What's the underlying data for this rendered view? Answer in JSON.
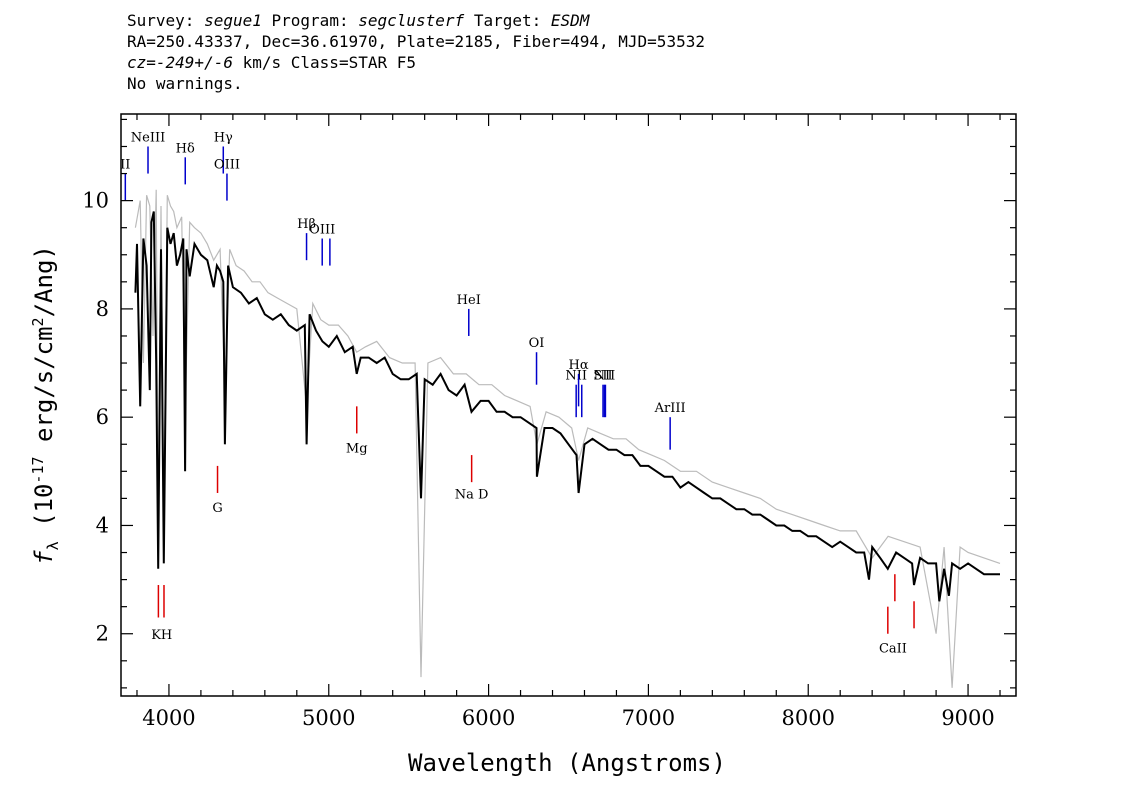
{
  "header": {
    "survey_label": "Survey:",
    "survey": "segue1",
    "program_label": "Program:",
    "program": "segclusterf",
    "target_label": "Target:",
    "target": "ESDM",
    "line2": "RA=250.43337, Dec=36.61970, Plate=2185, Fiber=494, MJD=53532",
    "cz": "cz=-249+/-6",
    "cz_unit": "km/s Class=STAR F5",
    "warnings": "No warnings."
  },
  "chart_data": {
    "type": "line",
    "xlabel": "Wavelength (Angstroms)",
    "ylabel": "f_λ (10^-17 erg/s/cm^2/Ang)",
    "xlim": [
      3700,
      9300
    ],
    "ylim": [
      0.85,
      11.6
    ],
    "x_ticks": [
      4000,
      5000,
      6000,
      7000,
      8000,
      9000
    ],
    "y_ticks": [
      2,
      4,
      6,
      8,
      10
    ],
    "grid": false,
    "series": [
      {
        "color": "#000000",
        "x": [
          3790,
          3800,
          3820,
          3840,
          3860,
          3880,
          3890,
          3905,
          3920,
          3933,
          3950,
          3968,
          3990,
          4010,
          4030,
          4050,
          4070,
          4090,
          4101,
          4110,
          4130,
          4160,
          4200,
          4240,
          4280,
          4300,
          4320,
          4340,
          4350,
          4370,
          4400,
          4450,
          4500,
          4550,
          4600,
          4650,
          4700,
          4750,
          4800,
          4850,
          4861,
          4880,
          4920,
          4960,
          5000,
          5050,
          5100,
          5150,
          5175,
          5200,
          5250,
          5300,
          5350,
          5400,
          5450,
          5500,
          5550,
          5577,
          5600,
          5650,
          5700,
          5750,
          5800,
          5850,
          5893,
          5950,
          6000,
          6050,
          6100,
          6150,
          6200,
          6250,
          6300,
          6302,
          6350,
          6400,
          6450,
          6500,
          6550,
          6563,
          6600,
          6650,
          6700,
          6750,
          6800,
          6850,
          6900,
          6950,
          7000,
          7050,
          7100,
          7150,
          7200,
          7250,
          7300,
          7350,
          7400,
          7450,
          7500,
          7550,
          7600,
          7650,
          7700,
          7750,
          7800,
          7850,
          7900,
          7950,
          8000,
          8050,
          8100,
          8150,
          8200,
          8250,
          8300,
          8350,
          8380,
          8400,
          8450,
          8498,
          8550,
          8600,
          8650,
          8662,
          8700,
          8750,
          8800,
          8820,
          8850,
          8880,
          8900,
          8950,
          9000,
          9050,
          9100,
          9150,
          9200
        ],
        "values": [
          8.3,
          9.2,
          6.2,
          9.3,
          8.8,
          6.5,
          9.6,
          9.8,
          7.0,
          3.2,
          9.1,
          3.3,
          9.5,
          9.2,
          9.4,
          8.8,
          9.0,
          9.3,
          5.0,
          9.1,
          8.6,
          9.2,
          9.0,
          8.9,
          8.4,
          8.8,
          8.7,
          8.5,
          5.5,
          8.8,
          8.4,
          8.3,
          8.1,
          8.2,
          7.9,
          7.8,
          7.9,
          7.7,
          7.6,
          7.7,
          5.5,
          7.9,
          7.6,
          7.4,
          7.3,
          7.5,
          7.2,
          7.3,
          6.8,
          7.1,
          7.1,
          7.0,
          7.1,
          6.8,
          6.7,
          6.7,
          6.8,
          4.5,
          6.7,
          6.6,
          6.8,
          6.5,
          6.4,
          6.6,
          6.1,
          6.3,
          6.3,
          6.1,
          6.1,
          6.0,
          6.0,
          5.9,
          5.8,
          4.9,
          5.8,
          5.8,
          5.7,
          5.5,
          5.3,
          4.6,
          5.5,
          5.6,
          5.5,
          5.4,
          5.4,
          5.3,
          5.3,
          5.1,
          5.1,
          5.0,
          4.9,
          4.9,
          4.7,
          4.8,
          4.7,
          4.6,
          4.5,
          4.5,
          4.4,
          4.3,
          4.3,
          4.2,
          4.2,
          4.1,
          4.0,
          4.0,
          3.9,
          3.9,
          3.8,
          3.8,
          3.7,
          3.6,
          3.7,
          3.6,
          3.5,
          3.5,
          3.0,
          3.6,
          3.4,
          3.2,
          3.5,
          3.4,
          3.3,
          2.9,
          3.4,
          3.3,
          3.3,
          2.6,
          3.2,
          2.7,
          3.3,
          3.2,
          3.3,
          3.2,
          3.1,
          3.1,
          3.1
        ]
      },
      {
        "color": "#bbbbbb",
        "x": [
          3790,
          3820,
          3840,
          3860,
          3880,
          3900,
          3920,
          3933,
          3950,
          3968,
          3990,
          4010,
          4030,
          4050,
          4080,
          4101,
          4130,
          4160,
          4200,
          4240,
          4280,
          4320,
          4350,
          4380,
          4420,
          4470,
          4520,
          4570,
          4620,
          4680,
          4740,
          4800,
          4861,
          4900,
          4950,
          5000,
          5060,
          5120,
          5175,
          5230,
          5300,
          5380,
          5460,
          5540,
          5577,
          5620,
          5700,
          5780,
          5860,
          5940,
          6020,
          6100,
          6180,
          6260,
          6302,
          6360,
          6440,
          6520,
          6563,
          6620,
          6700,
          6780,
          6860,
          6940,
          7020,
          7100,
          7200,
          7300,
          7400,
          7500,
          7600,
          7700,
          7800,
          7900,
          8000,
          8100,
          8200,
          8300,
          8400,
          8500,
          8600,
          8700,
          8800,
          8850,
          8900,
          8950,
          9000,
          9100,
          9200
        ],
        "values": [
          9.5,
          10.0,
          7.0,
          10.1,
          9.9,
          7.5,
          10.2,
          4.0,
          9.9,
          4.2,
          10.1,
          9.9,
          9.8,
          9.5,
          9.7,
          6.0,
          9.6,
          9.5,
          9.4,
          9.2,
          8.9,
          9.1,
          6.5,
          9.1,
          8.8,
          8.7,
          8.5,
          8.5,
          8.3,
          8.2,
          8.1,
          8.0,
          6.2,
          8.1,
          7.8,
          7.7,
          7.7,
          7.5,
          7.2,
          7.3,
          7.4,
          7.1,
          7.0,
          7.0,
          1.2,
          7.0,
          7.1,
          6.8,
          6.8,
          6.6,
          6.6,
          6.4,
          6.3,
          6.2,
          5.5,
          6.1,
          6.0,
          5.8,
          5.2,
          5.8,
          5.7,
          5.6,
          5.6,
          5.4,
          5.3,
          5.2,
          5.0,
          5.0,
          4.8,
          4.7,
          4.6,
          4.5,
          4.3,
          4.2,
          4.1,
          4.0,
          3.9,
          3.9,
          3.4,
          3.8,
          3.7,
          3.6,
          2.0,
          3.6,
          1.0,
          3.6,
          3.5,
          3.4,
          3.3
        ]
      }
    ],
    "emission_lines": [
      {
        "label": "II",
        "x": 3727,
        "y_top": 10.5,
        "y_bottom": 10.0
      },
      {
        "label": "NeIII",
        "x": 3869,
        "y_top": 11.0,
        "y_bottom": 10.5
      },
      {
        "label": "Hδ",
        "x": 4102,
        "y_top": 10.8,
        "y_bottom": 10.3
      },
      {
        "label": "Hγ",
        "x": 4340,
        "y_top": 11.0,
        "y_bottom": 10.5
      },
      {
        "label": "OIII",
        "x": 4363,
        "y_top": 10.5,
        "y_bottom": 10.0
      },
      {
        "label": "Hβ",
        "x": 4861,
        "y_top": 9.4,
        "y_bottom": 8.9
      },
      {
        "label": "OIII",
        "x": 4959,
        "y_top": 9.3,
        "y_bottom": 8.8
      },
      {
        "label": "",
        "x": 5007,
        "y_top": 9.3,
        "y_bottom": 8.8
      },
      {
        "label": "HeI",
        "x": 5876,
        "y_top": 8.0,
        "y_bottom": 7.5
      },
      {
        "label": "OI",
        "x": 6300,
        "y_top": 7.2,
        "y_bottom": 6.6
      },
      {
        "label": "NII",
        "x": 6548,
        "y_top": 6.6,
        "y_bottom": 6.0
      },
      {
        "label": "Hα",
        "x": 6563,
        "y_top": 6.8,
        "y_bottom": 6.2
      },
      {
        "label": "",
        "x": 6583,
        "y_top": 6.6,
        "y_bottom": 6.0
      },
      {
        "label": "SII",
        "x": 6716,
        "y_top": 6.6,
        "y_bottom": 6.0
      },
      {
        "label": "",
        "x": 6731,
        "y_top": 6.6,
        "y_bottom": 6.0
      },
      {
        "label": "NII",
        "x": 6725,
        "y_top": 6.6,
        "y_bottom": 6.0
      },
      {
        "label": "ArIII",
        "x": 7136,
        "y_top": 6.0,
        "y_bottom": 5.4
      }
    ],
    "absorption_lines": [
      {
        "label": "G",
        "x": 4304,
        "y_top": 5.1,
        "y_bottom": 4.6,
        "label_y": 4.25
      },
      {
        "label": "Mg",
        "x": 5175,
        "y_top": 6.2,
        "y_bottom": 5.7,
        "label_y": 5.35
      },
      {
        "label": "Na D",
        "x": 5894,
        "y_top": 5.3,
        "y_bottom": 4.8,
        "label_y": 4.5
      },
      {
        "label": "",
        "x": 3934,
        "y_top": 2.9,
        "y_bottom": 2.3
      },
      {
        "label": "",
        "x": 3969,
        "y_top": 2.9,
        "y_bottom": 2.3
      },
      {
        "label": "",
        "x": 8498,
        "y_top": 2.5,
        "y_bottom": 2.0
      },
      {
        "label": "",
        "x": 8542,
        "y_top": 3.1,
        "y_bottom": 2.6
      },
      {
        "label": "",
        "x": 8662,
        "y_top": 2.6,
        "y_bottom": 2.1
      }
    ],
    "extra_labels": [
      {
        "label": "K",
        "x": 3920,
        "y": 1.9
      },
      {
        "label": "H",
        "x": 3985,
        "y": 1.9
      },
      {
        "label": "CaII",
        "x": 8530,
        "y": 1.65
      }
    ],
    "emission_color": "#0000cc",
    "absorption_color": "#dd0000"
  }
}
